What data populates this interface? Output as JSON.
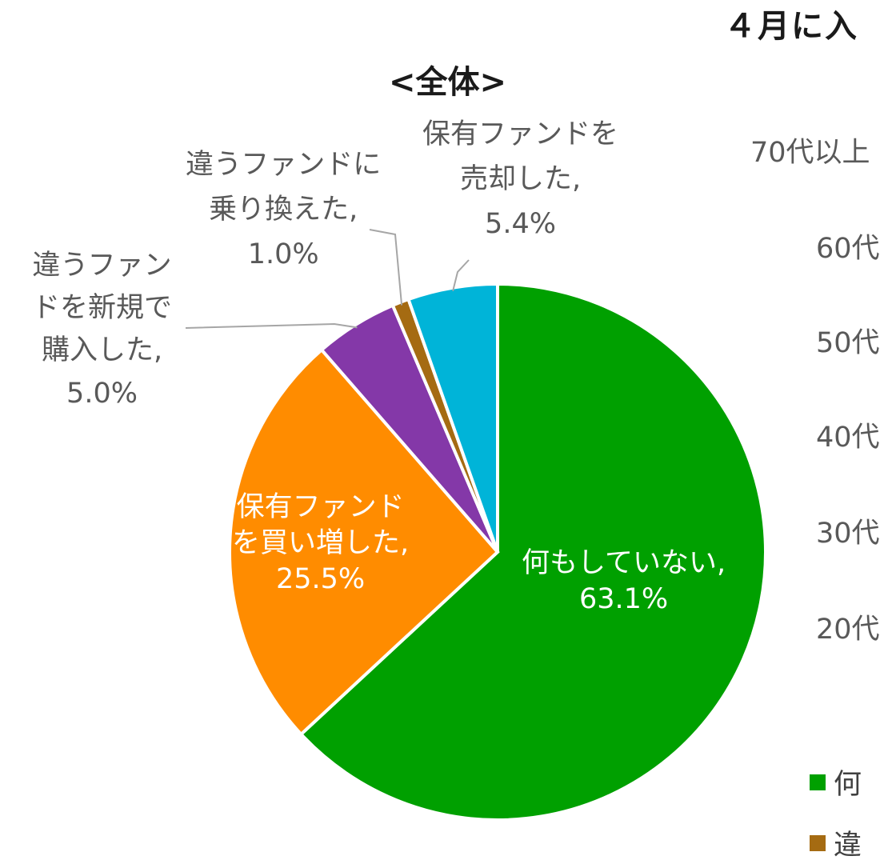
{
  "page_heading": "４月に入",
  "chart_data": {
    "type": "pie",
    "title": "<全体>",
    "slices": [
      {
        "label": "何もしていない,",
        "value": 63.1,
        "value_text": "63.1%",
        "color": "#00a000"
      },
      {
        "label": "保有ファンドを買い増した,",
        "value": 25.5,
        "value_text": "25.5%",
        "color": "#ff8c00"
      },
      {
        "label": "違うファンドを新規で購入した,",
        "value": 5.0,
        "value_text": "5.0%",
        "color": "#8438a8"
      },
      {
        "label": "違うファンドに乗り換えた,",
        "value": 1.0,
        "value_text": "1.0%",
        "color": "#a56b12"
      },
      {
        "label": "保有ファンドを売却した,",
        "value": 5.4,
        "value_text": "5.4%",
        "color": "#00b4d8"
      }
    ],
    "label_lines": {
      "green": [
        "何もしていない,",
        "63.1%"
      ],
      "orange": [
        "保有ファンド",
        "を買い増した,",
        "25.5%"
      ],
      "purple": [
        "違うファン",
        "ドを新規で",
        "購入した,",
        "5.0%"
      ],
      "brown": [
        "違うファンドに",
        "乗り換えた,",
        "1.0%"
      ],
      "cyan": [
        "保有ファンドを",
        "売却した,",
        "5.4%"
      ]
    }
  },
  "age_labels": [
    "70代以上",
    "60代",
    "50代",
    "40代",
    "30代",
    "20代"
  ],
  "legend": [
    {
      "label": "何",
      "color": "#00a000"
    },
    {
      "label": "違",
      "color": "#a56b12"
    }
  ]
}
